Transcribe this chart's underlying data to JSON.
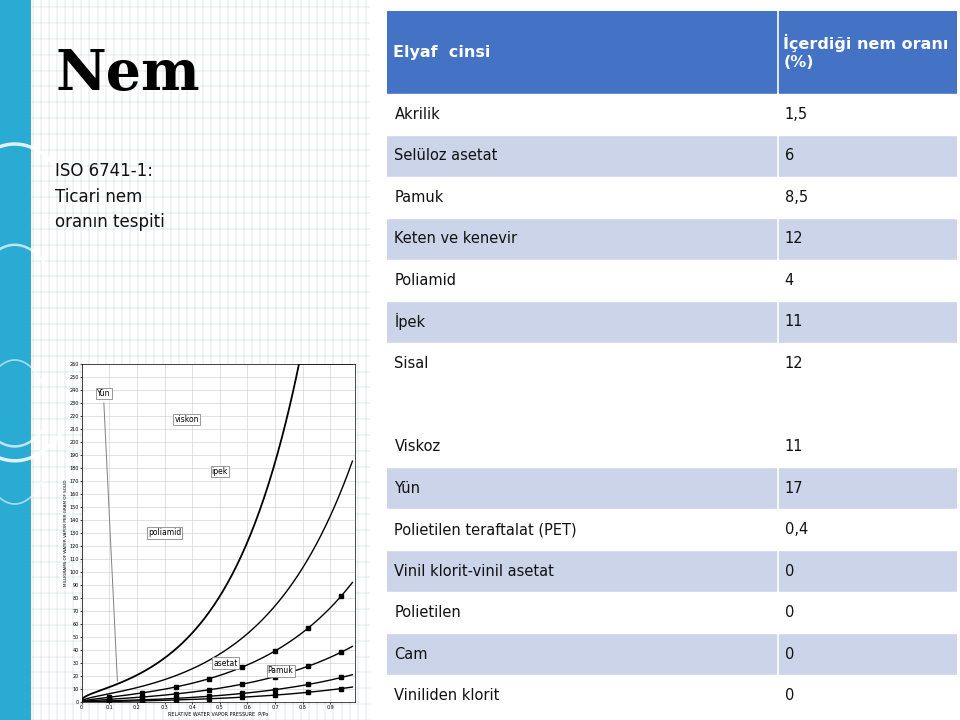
{
  "title": "Nem",
  "subtitle_line1": "ISO 6741-1:",
  "subtitle_line2": "Ticari nem",
  "subtitle_line3": "oranın tespiti",
  "table_header_col1": "Elyaf  cinsi",
  "table_header_col2": "İçerdiği nem oranı\n(%)",
  "table_rows": [
    [
      "Akrilik",
      "1,5"
    ],
    [
      "Selüloz asetat",
      "6"
    ],
    [
      "Pamuk",
      "8,5"
    ],
    [
      "Keten ve kenevir",
      "12"
    ],
    [
      "Poliamid",
      "4"
    ],
    [
      "İpek",
      "11"
    ],
    [
      "Sisal",
      "12"
    ],
    [
      "",
      ""
    ],
    [
      "Viskoz",
      "11"
    ],
    [
      "Yün",
      "17"
    ],
    [
      "Polietilen teraftalat (PET)",
      "0,4"
    ],
    [
      "Vinil klorit-vinil asetat",
      "0"
    ],
    [
      "Polietilen",
      "0"
    ],
    [
      "Cam",
      "0"
    ],
    [
      "Viniliden klorit",
      "0"
    ]
  ],
  "row_colors": [
    "#FFFFFF",
    "#CBD4E8",
    "#FFFFFF",
    "#CBD4E8",
    "#FFFFFF",
    "#CBD4E8",
    "#FFFFFF",
    "#FFFFFF",
    "#FFFFFF",
    "#CBD4E8",
    "#FFFFFF",
    "#CBD4E8",
    "#FFFFFF",
    "#CBD4E8",
    "#FFFFFF"
  ],
  "header_bg": "#4472C4",
  "header_fg": "#FFFFFF",
  "slide_bg": "#FFFFFF",
  "blue_bar_color": "#29ABD4",
  "left_bg": "#EEF0F0",
  "grid_color": "#C8D0D8"
}
